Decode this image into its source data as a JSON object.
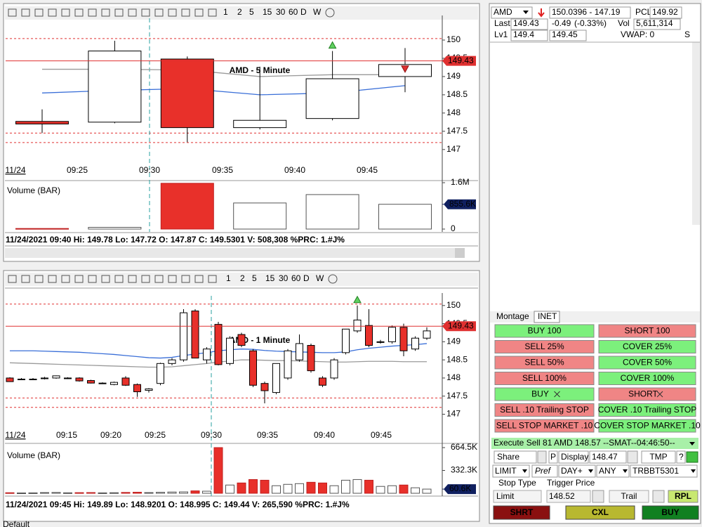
{
  "charts": [
    {
      "watermark": "AMD - 5 Minute",
      "date_label": "11/24",
      "time_labels": [
        "09:25",
        "09:30",
        "09:35",
        "09:40",
        "09:45"
      ],
      "ylim": [
        146.63,
        150.52
      ],
      "yticks": [
        147,
        147.5,
        148,
        148.5,
        149,
        149.5,
        150
      ],
      "dashed_levels": [
        150.04,
        147.45,
        147.19
      ],
      "last": 149.43,
      "open": [
        147.77,
        147.75,
        149.48,
        147.6,
        147.85,
        149.0
      ],
      "high": [
        148.1,
        149.98,
        149.55,
        149.27,
        149.7,
        149.78
      ],
      "low": [
        147.45,
        147.72,
        147.2,
        147.55,
        147.8,
        148.57
      ],
      "close": [
        147.7,
        149.7,
        147.6,
        147.8,
        148.94,
        149.33
      ],
      "ma": [
        {
          "color": "#3a6fd8",
          "values": [
            148.55,
            148.62,
            148.67,
            148.5,
            148.55,
            148.75
          ]
        },
        {
          "color": "#9a9a9a",
          "values": [
            149.2,
            149.2,
            149.18,
            149.0,
            149.05,
            149.05
          ]
        }
      ],
      "volume_label": "Volume (BAR)",
      "vylim": [
        0,
        1600000
      ],
      "vticks": [
        {
          "value": 1600000,
          "label": "1.6M"
        },
        0
      ],
      "vlast": {
        "value": 855600,
        "label": "855.6K"
      },
      "volume": [
        20000,
        60000,
        1580000,
        900000,
        1190000,
        855600
      ],
      "status": "11/24/2021 09:40  Hi: 149.78  Lo: 147.72  O: 147.87  C: 149.5301  V: 508,308 %PRC: 1.#J%"
    },
    {
      "watermark": "AMD - 1 Minute",
      "date_label": "11/24",
      "time_labels": [
        "09:15",
        "09:20",
        "09:25",
        "09:30",
        "09:35",
        "09:40",
        "09:45"
      ],
      "ylim": [
        146.7,
        150.19
      ],
      "yticks": [
        147,
        147.5,
        148,
        148.5,
        149,
        149.5,
        150
      ],
      "dashed_levels": [
        150.04,
        147.45,
        147.19
      ],
      "last": 149.43,
      "open": [
        148.0,
        147.97,
        147.97,
        147.98,
        148.0,
        148.0,
        148.0,
        147.93,
        147.86,
        147.82,
        148.0,
        147.82,
        147.66,
        147.85,
        148.4,
        148.5,
        149.85,
        148.5,
        149.48,
        148.4,
        149.2,
        148.75,
        147.85,
        147.6,
        148.0,
        148.5,
        148.9,
        148.0,
        148.0,
        148.7,
        149.3,
        149.45,
        149.0,
        149.0,
        149.4,
        148.8,
        149.1
      ],
      "high": [
        148.02,
        148.0,
        148.0,
        148.03,
        148.07,
        148.02,
        148.02,
        147.95,
        147.88,
        147.9,
        148.05,
        147.85,
        147.72,
        148.42,
        148.55,
        149.9,
        149.9,
        148.85,
        149.55,
        149.15,
        149.25,
        148.8,
        147.9,
        148.4,
        148.8,
        149.2,
        148.95,
        148.05,
        148.55,
        149.35,
        150.0,
        149.9,
        149.05,
        149.45,
        149.5,
        149.15,
        149.4
      ],
      "low": [
        147.9,
        147.95,
        147.95,
        147.96,
        147.98,
        147.97,
        147.9,
        147.85,
        147.84,
        147.8,
        147.78,
        147.48,
        147.6,
        147.8,
        148.35,
        148.45,
        148.55,
        148.4,
        148.35,
        148.35,
        148.85,
        147.75,
        147.3,
        147.55,
        147.95,
        148.45,
        148.15,
        147.75,
        147.95,
        148.65,
        149.25,
        148.85,
        148.95,
        148.95,
        148.6,
        148.75,
        149.05
      ],
      "close": [
        147.9,
        147.97,
        147.97,
        148.0,
        148.06,
        148.0,
        147.92,
        147.86,
        147.86,
        147.88,
        147.8,
        147.62,
        147.7,
        148.4,
        148.5,
        149.8,
        148.55,
        148.8,
        148.37,
        149.1,
        148.9,
        147.8,
        147.65,
        148.4,
        148.75,
        148.95,
        148.2,
        147.8,
        148.5,
        149.35,
        149.6,
        148.9,
        149.0,
        149.4,
        148.75,
        149.1,
        149.3
      ],
      "ma": [
        {
          "color": "#3a6fd8",
          "values": [
            148.75,
            148.75,
            148.75,
            148.74,
            148.73,
            148.72,
            148.71,
            148.69,
            148.67,
            148.65,
            148.62,
            148.59,
            148.56,
            148.55,
            148.57,
            148.62,
            148.66,
            148.7,
            148.75,
            148.78,
            148.8,
            148.79,
            148.76,
            148.74,
            148.73,
            148.72,
            148.71,
            148.7,
            148.7,
            148.72,
            148.78,
            148.82,
            148.85,
            148.88,
            148.9,
            148.92,
            148.95
          ]
        },
        {
          "color": "#9a9a9a",
          "values": [
            148.42,
            148.41,
            148.4,
            148.39,
            148.38,
            148.37,
            148.36,
            148.35,
            148.34,
            148.33,
            148.32,
            148.31,
            148.3,
            148.3,
            148.31,
            148.34,
            148.37,
            148.4,
            148.44,
            148.47,
            148.5,
            148.5,
            148.49,
            148.48,
            148.48,
            148.47,
            148.46,
            148.45,
            148.44,
            148.44,
            148.45,
            148.46,
            148.46,
            148.46,
            148.45,
            148.45,
            148.45
          ]
        }
      ],
      "volume_label": "Volume (BAR)",
      "vylim": [
        0,
        664500
      ],
      "vticks": [
        {
          "value": 664500,
          "label": "664.5K"
        },
        {
          "value": 332300,
          "label": "332.3K"
        }
      ],
      "vlast": {
        "value": 60600,
        "label": "60.6K"
      },
      "volume": [
        8000,
        5000,
        6000,
        10000,
        12000,
        7000,
        9000,
        10000,
        6000,
        8000,
        12000,
        15000,
        10000,
        14000,
        18000,
        20000,
        35000,
        30000,
        664500,
        120000,
        150000,
        200000,
        190000,
        110000,
        130000,
        140000,
        160000,
        150000,
        110000,
        190000,
        200000,
        190000,
        100000,
        110000,
        120000,
        80000,
        60600
      ],
      "status": "11/24/2021 09:45  Hi: 149.89  Lo: 148.9201  O: 148.995  C: 149.44  V: 265,590 %PRC: 1.#J%"
    }
  ],
  "timeframes": [
    "1",
    "2",
    "5",
    "15",
    "30",
    "60",
    "D",
    "W"
  ],
  "quote": {
    "symbol": "AMD",
    "range": "150.0396 - 147.19",
    "pcl_label": "PCL",
    "pcl": "149.92",
    "last_label": "Last",
    "last": "149.43",
    "change": "-0.49",
    "change_pct": "(-0.33%)",
    "vol_label": "Vol",
    "volume": "5,611,314",
    "lv1_label": "Lv1",
    "bid": "149.4",
    "ask": "149.45",
    "vwap": "VWAP: 0",
    "s": "S"
  },
  "tabs": [
    "Montage",
    "INET"
  ],
  "buttons": [
    [
      "BUY 100",
      "SHORT 100"
    ],
    [
      "SELL 25%",
      "COVER 25%"
    ],
    [
      "SELL 50%",
      "COVER 50%"
    ],
    [
      "SELL 100%",
      "COVER 100%"
    ],
    [
      "BUY",
      "SHORT"
    ],
    [
      "SELL .10 Trailing STOP",
      "COVER .10 Trailing STOP"
    ],
    [
      "SELL STOP MARKET .10",
      "COVER STOP MARKET .10"
    ]
  ],
  "message": "Execute Sell 81 AMD 148.57 --SMAT--04:46:50--",
  "order": {
    "share": "Share",
    "p": "P",
    "display": "Display",
    "price": "148.47",
    "tmp": "TMP",
    "help": "?",
    "type": "LIMIT",
    "pref": "Pref",
    "tif": "DAY+",
    "route": "ANY",
    "account": "TRBBT5301",
    "stop_type_label": "Stop Type",
    "trigger_label": "Trigger Price",
    "stop_type": "Limit",
    "trigger": "148.52",
    "trail": "Trail",
    "rpl": "RPL",
    "shrt": "SHRT",
    "cxl": "CXL",
    "buy": "BUY"
  },
  "footer": "Default"
}
